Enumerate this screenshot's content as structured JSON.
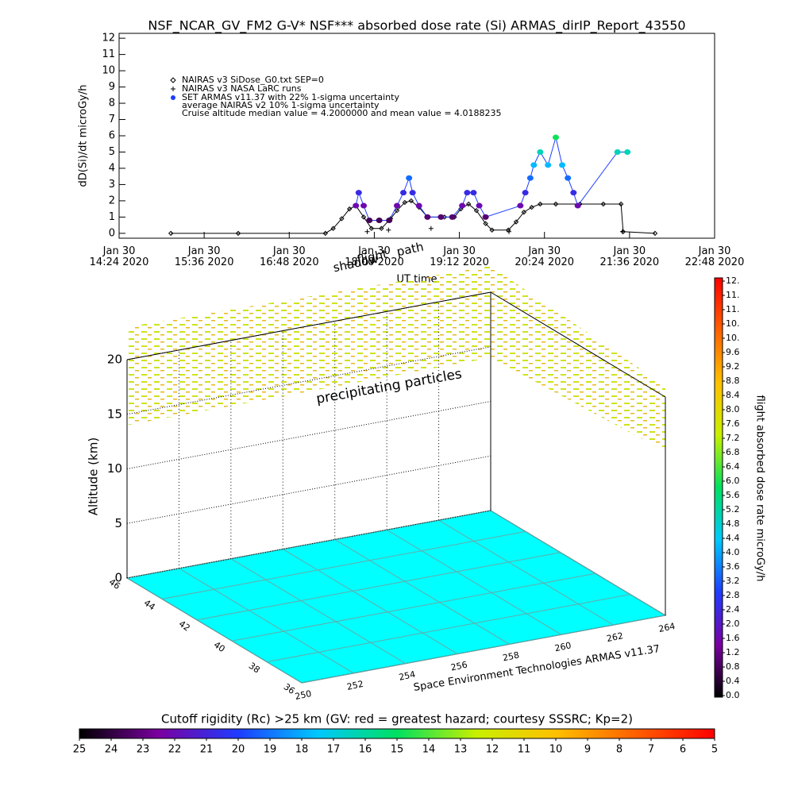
{
  "chart_data": [
    {
      "type": "line",
      "title": "NSF_NCAR_GV_FM2 G-V* NSF*** absorbed dose rate (Si) ARMAS_dirIP_Report_43550",
      "ylabel": "dD(Si)/dt microGy/h",
      "xlabel": "UT time",
      "xlim": [
        14.4,
        22.8
      ],
      "xticks": [
        {
          "value": 14.4,
          "label": "Jan 30\n14:24 2020"
        },
        {
          "value": 15.6,
          "label": "Jan 30\n15:36 2020"
        },
        {
          "value": 16.8,
          "label": "Jan 30\n16:48 2020"
        },
        {
          "value": 18.0,
          "label": "Jan 30\n18:00 2020"
        },
        {
          "value": 19.2,
          "label": "Jan 30\n19:12 2020"
        },
        {
          "value": 20.4,
          "label": "Jan 30\n20:24 2020"
        },
        {
          "value": 21.6,
          "label": "Jan 30\n21:36 2020"
        },
        {
          "value": 22.8,
          "label": "Jan 30\n22:48 2020"
        }
      ],
      "ylim": [
        -0.3,
        12.3
      ],
      "yticks": [
        0,
        1,
        2,
        3,
        4,
        5,
        6,
        7,
        8,
        9,
        10,
        11,
        12
      ],
      "annotations": [
        "average NAIRAS v2 10% 1-sigma uncertainty",
        "Cruise altitude median value = 4.2000000 and mean value = 4.0188235",
        "shadow",
        "flight",
        "path"
      ],
      "series": [
        {
          "name": "NAIRAS v3 SiDose_G0.txt SEP=0",
          "color": "#000000",
          "marker": "diamond",
          "x": [
            15.13,
            16.08,
            17.31,
            17.42,
            17.54,
            17.65,
            17.74,
            17.85,
            17.96,
            18.1,
            18.23,
            18.32,
            18.43,
            18.52,
            18.63,
            18.75,
            18.99,
            19.13,
            19.22,
            19.33,
            19.44,
            19.57,
            19.66,
            19.89,
            20.0,
            20.11,
            20.22,
            20.34,
            20.56,
            20.9,
            21.23,
            21.48,
            21.51,
            21.96
          ],
          "values": [
            0,
            0,
            0,
            0.3,
            0.9,
            1.5,
            1.7,
            1.0,
            0.3,
            0.3,
            0.9,
            1.4,
            1.9,
            2.0,
            1.6,
            1.0,
            1.0,
            1.0,
            1.5,
            1.8,
            1.4,
            0.6,
            0.2,
            0.2,
            0.7,
            1.3,
            1.6,
            1.8,
            1.8,
            1.8,
            1.8,
            1.8,
            0.1,
            0
          ]
        },
        {
          "name": "NAIRAS v3 NASA LaRC runs",
          "color": "#000000",
          "marker": "plus",
          "x": [
            17.9,
            18.2,
            18.8,
            19.9,
            21.5
          ],
          "values": [
            0.1,
            0.2,
            0.3,
            0.1,
            0.1
          ]
        },
        {
          "name": "SET ARMAS v11.37 with 22% 1-sigma uncertainty",
          "color": "#1e3cff",
          "marker": "dot",
          "x": [
            17.74,
            17.78,
            17.85,
            17.93,
            18.07,
            18.21,
            18.32,
            18.41,
            18.49,
            18.54,
            18.63,
            18.75,
            18.94,
            19.1,
            19.24,
            19.31,
            19.4,
            19.48,
            19.57,
            20.06,
            20.13,
            20.2,
            20.25,
            20.34,
            20.45,
            20.56,
            20.65,
            20.73,
            20.81,
            20.87,
            21.43,
            21.57
          ],
          "values": [
            1.7,
            2.5,
            1.7,
            0.8,
            0.8,
            0.8,
            1.7,
            2.5,
            3.4,
            2.5,
            1.7,
            1.0,
            1.0,
            1.0,
            1.7,
            2.5,
            2.5,
            1.7,
            1.0,
            1.7,
            2.5,
            3.4,
            4.2,
            5.0,
            4.2,
            5.9,
            4.2,
            3.4,
            2.5,
            1.7,
            5.0,
            5.0
          ]
        }
      ]
    },
    {
      "type": "scatter3d",
      "zlabel": "Altitude (km)",
      "credit": "Space Environment Technologies ARMAS v11.37",
      "annotation": "precipitating particles",
      "xlim": [
        250,
        264
      ],
      "xticks": [
        250,
        252,
        254,
        256,
        258,
        260,
        262,
        264
      ],
      "ylim": [
        36,
        46
      ],
      "yticks": [
        36,
        38,
        40,
        42,
        44,
        46
      ],
      "zlim": [
        0,
        20
      ],
      "zticks": [
        0,
        5,
        10,
        15,
        20
      ],
      "ground_color": "#00ffff"
    },
    {
      "type": "colorbar",
      "orientation": "vertical",
      "label": "flight absorbed dose rate microGy/h",
      "ylim": [
        0,
        11.6
      ],
      "yticks": [
        {
          "value": 0,
          "label": "0.0"
        },
        0.4,
        0.8,
        1.2,
        1.6,
        {
          "value": 2,
          "label": "2.0"
        },
        2.4,
        2.8,
        3.2,
        3.6,
        {
          "value": 4,
          "label": "4.0"
        },
        4.4,
        4.8,
        5.2,
        5.6,
        {
          "value": 6,
          "label": "6.0"
        },
        6.4,
        6.8,
        7.2,
        7.6,
        {
          "value": 8,
          "label": "8.0"
        },
        8.4,
        8.8,
        9.2,
        9.6,
        {
          "value": 10,
          "label": "10."
        },
        {
          "value": 10.4,
          "label": "10."
        },
        {
          "value": 10.8,
          "label": "11."
        },
        {
          "value": 11.2,
          "label": "11."
        },
        {
          "value": 11.6,
          "label": "12."
        }
      ],
      "colormap": [
        "#000000",
        "#7a00a0",
        "#1e3cff",
        "#00c8ff",
        "#00e060",
        "#c8f000",
        "#ffc000",
        "#ff6000",
        "#ff0000"
      ]
    },
    {
      "type": "colorbar",
      "orientation": "horizontal",
      "title": "Cutoff rigidity (Rc) >25 km (GV: red = greatest hazard; courtesy SSSRC; Kp=2)",
      "xlim": [
        25,
        5
      ],
      "xticks": [
        25,
        24,
        23,
        22,
        21,
        20,
        19,
        18,
        17,
        16,
        15,
        14,
        13,
        12,
        11,
        10,
        9,
        8,
        7,
        6,
        5
      ],
      "colormap": [
        "#000000",
        "#7a00a0",
        "#1e3cff",
        "#00c8ff",
        "#00e060",
        "#c8f000",
        "#ffc000",
        "#ff6000",
        "#ff0000"
      ]
    }
  ]
}
